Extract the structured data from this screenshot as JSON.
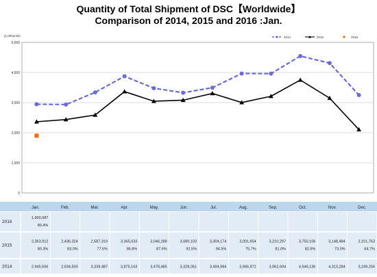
{
  "chart_data": {
    "type": "line",
    "title": "Quantity of Total Shipment of DSC【Worldwide】",
    "subtitle": "Comparison of 2014, 2015 and 2016 :Jan.",
    "ylabel": "(1,000units)",
    "ylim": [
      0,
      5000
    ],
    "yticks": [
      "0",
      "1,000",
      "2,000",
      "3,000",
      "4,000",
      "5,000"
    ],
    "categories": [
      "Jan.",
      "Feb.",
      "Mar.",
      "Apr.",
      "May.",
      "Jun.",
      "Jul.",
      "Aug.",
      "Sep.",
      "Oct.",
      "Nov.",
      "Dec."
    ],
    "grid": true,
    "legend_position": "top-right",
    "series": [
      {
        "name": "2014",
        "color": "#6a6ad8",
        "style": "dashed",
        "marker": "circle",
        "values": [
          2945.506,
          2934.5,
          3339.487,
          3875.163,
          3478.485,
          3328.051,
          3494.984,
          3966.972,
          3962.604,
          4546.136,
          4313.284,
          3249.256
        ]
      },
      {
        "name": "2015",
        "color": "#000000",
        "style": "solid",
        "marker": "triangle",
        "values": [
          2363.912,
          2436.324,
          2587.319,
          3365.033,
          3046.288,
          3080.103,
          3304.174,
          3001.654,
          3210.297,
          3750.106,
          3148.484,
          2101.763
        ]
      },
      {
        "name": "2016",
        "color": "#ff6a00",
        "style": "none",
        "marker": "square",
        "values": [
          1900.087,
          null,
          null,
          null,
          null,
          null,
          null,
          null,
          null,
          null,
          null,
          null
        ]
      }
    ]
  },
  "table": {
    "header": [
      "Jan.",
      "Feb.",
      "Mar.",
      "Apr.",
      "May.",
      "Jun.",
      "Jul.",
      "Aug.",
      "Sep.",
      "Oct.",
      "Nov.",
      "Dec."
    ],
    "rows": [
      {
        "label": "2016",
        "values": [
          "1,900,087",
          "",
          "",
          "",
          "",
          "",
          "",
          "",
          "",
          "",
          "",
          ""
        ],
        "pcts": [
          "80.4%",
          "",
          "",
          "",
          "",
          "",
          "",
          "",
          "",
          "",
          "",
          ""
        ]
      },
      {
        "label": "2015",
        "values": [
          "2,363,912",
          "2,436,324",
          "2,587,319",
          "3,365,033",
          "3,046,288",
          "3,080,103",
          "3,304,174",
          "3,001,654",
          "3,210,297",
          "3,750,106",
          "3,148,484",
          "2,101,763"
        ],
        "pcts": [
          "80.3%",
          "83.0%",
          "77.5%",
          "86.8%",
          "87.6%",
          "92.5%",
          "94.5%",
          "75.7%",
          "81.0%",
          "82.5%",
          "73.0%",
          "64.7%"
        ]
      },
      {
        "label": "2014",
        "values": [
          "2,945,506",
          "2,934,500",
          "3,339,487",
          "3,875,163",
          "3,478,485",
          "3,328,051",
          "3,494,984",
          "3,966,972",
          "3,962,604",
          "4,546,136",
          "4,313,284",
          "3,249,256"
        ],
        "pcts": []
      }
    ]
  }
}
